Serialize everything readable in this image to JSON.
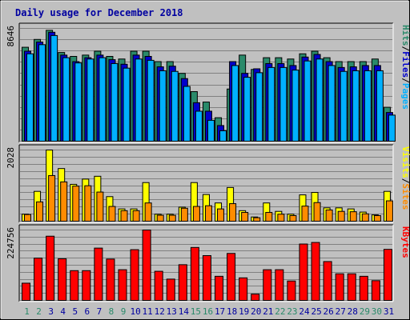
{
  "title": "Daily usage for December 2018",
  "colors": {
    "background": "#c0c0c0",
    "panel": "#c0c0c0",
    "gridline": "#808080",
    "border_dark": "#000000",
    "border_light": "#ffffff",
    "title_text": "#0000a0",
    "hits": "#2a8a6a",
    "files": "#0000cc",
    "pages": "#00b0ff",
    "visits": "#ffff00",
    "sites": "#ff8c00",
    "kbytes": "#ff0000",
    "day_weekend": "#2a8a6a",
    "day_weekday": "#0000a0",
    "legend_slash": "#000000"
  },
  "chart_data": [
    {
      "type": "bar",
      "panel": "hits-files-pages",
      "ymax_label": "8646",
      "ylim": [
        0,
        8646
      ],
      "legend": [
        {
          "label": "Pages",
          "color": "#00b0ff"
        },
        {
          "label": "/",
          "color": "#000000"
        },
        {
          "label": "Files",
          "color": "#0000cc"
        },
        {
          "label": "/",
          "color": "#000000"
        },
        {
          "label": "Hits",
          "color": "#2a8a6a"
        }
      ],
      "categories": [
        "1",
        "2",
        "3",
        "4",
        "5",
        "6",
        "7",
        "8",
        "9",
        "10",
        "11",
        "12",
        "13",
        "14",
        "15",
        "16",
        "17",
        "18",
        "19",
        "20",
        "21",
        "22",
        "23",
        "24",
        "25",
        "26",
        "27",
        "28",
        "29",
        "30",
        "31"
      ],
      "series": [
        {
          "name": "Hits",
          "values": [
            7200,
            7800,
            8500,
            6800,
            6500,
            6600,
            6900,
            6500,
            6300,
            6900,
            6900,
            6100,
            6100,
            5200,
            3800,
            3000,
            1800,
            4000,
            6600,
            5500,
            6400,
            6400,
            6300,
            6700,
            6900,
            6400,
            6100,
            6100,
            6100,
            6300,
            2600
          ]
        },
        {
          "name": "Files",
          "values": [
            6900,
            7600,
            8350,
            6600,
            6100,
            6400,
            6600,
            6250,
            5900,
            6600,
            6500,
            5700,
            5750,
            4800,
            2950,
            2300,
            1200,
            6100,
            5200,
            5550,
            5950,
            5950,
            5800,
            6450,
            6650,
            6100,
            5650,
            5700,
            5800,
            5800,
            2200
          ]
        },
        {
          "name": "Pages",
          "values": [
            6700,
            7400,
            8100,
            6400,
            6000,
            6300,
            6400,
            5950,
            5600,
            6300,
            6200,
            5400,
            5350,
            4200,
            2300,
            1600,
            800,
            5800,
            4900,
            5250,
            5650,
            5650,
            5450,
            6150,
            6300,
            5800,
            5350,
            5400,
            5400,
            5400,
            2000
          ]
        }
      ]
    },
    {
      "type": "bar",
      "panel": "visits-sites",
      "ymax_label": "2028",
      "ylim": [
        0,
        2028
      ],
      "legend": [
        {
          "label": "Sites",
          "color": "#ff8c00"
        },
        {
          "label": "/",
          "color": "#000000"
        },
        {
          "label": "Visits",
          "color": "#ffff00"
        }
      ],
      "categories": [
        "1",
        "2",
        "3",
        "4",
        "5",
        "6",
        "7",
        "8",
        "9",
        "10",
        "11",
        "12",
        "13",
        "14",
        "15",
        "16",
        "17",
        "18",
        "19",
        "20",
        "21",
        "22",
        "23",
        "24",
        "25",
        "26",
        "27",
        "28",
        "29",
        "30",
        "31"
      ],
      "series": [
        {
          "name": "Visits",
          "values": [
            200,
            850,
            2028,
            1500,
            1050,
            1200,
            1280,
            700,
            350,
            350,
            1100,
            200,
            200,
            400,
            1100,
            760,
            520,
            960,
            300,
            120,
            520,
            280,
            200,
            750,
            820,
            380,
            380,
            350,
            260,
            180,
            850
          ]
        },
        {
          "name": "Sites",
          "values": [
            190,
            550,
            1300,
            1120,
            1000,
            1010,
            830,
            420,
            300,
            300,
            520,
            170,
            170,
            370,
            420,
            440,
            350,
            500,
            250,
            100,
            250,
            200,
            160,
            430,
            530,
            320,
            280,
            270,
            210,
            160,
            580
          ]
        }
      ]
    },
    {
      "type": "bar",
      "panel": "kbytes",
      "ymax_label": "224756",
      "ylim": [
        0,
        224756
      ],
      "legend": [
        {
          "label": "KBytes",
          "color": "#ff0000"
        }
      ],
      "categories": [
        "1",
        "2",
        "3",
        "4",
        "5",
        "6",
        "7",
        "8",
        "9",
        "10",
        "11",
        "12",
        "13",
        "14",
        "15",
        "16",
        "17",
        "18",
        "19",
        "20",
        "21",
        "22",
        "23",
        "24",
        "25",
        "26",
        "27",
        "28",
        "29",
        "30",
        "31"
      ],
      "series": [
        {
          "name": "KBytes",
          "values": [
            55000,
            135000,
            205000,
            133000,
            95000,
            95000,
            167000,
            132000,
            98000,
            162000,
            224756,
            93000,
            68000,
            114000,
            169000,
            143000,
            77000,
            150000,
            72000,
            20000,
            98000,
            98000,
            62000,
            180000,
            185000,
            124000,
            85000,
            85000,
            77000,
            63000,
            163000
          ]
        }
      ]
    }
  ],
  "x_axis": {
    "labels": [
      "1",
      "2",
      "3",
      "4",
      "5",
      "6",
      "7",
      "8",
      "9",
      "10",
      "11",
      "12",
      "13",
      "14",
      "15",
      "16",
      "17",
      "18",
      "19",
      "20",
      "21",
      "22",
      "23",
      "24",
      "25",
      "26",
      "27",
      "28",
      "29",
      "30",
      "31"
    ],
    "weekend_days": [
      "1",
      "2",
      "8",
      "9",
      "15",
      "16",
      "22",
      "23",
      "29",
      "30"
    ]
  }
}
